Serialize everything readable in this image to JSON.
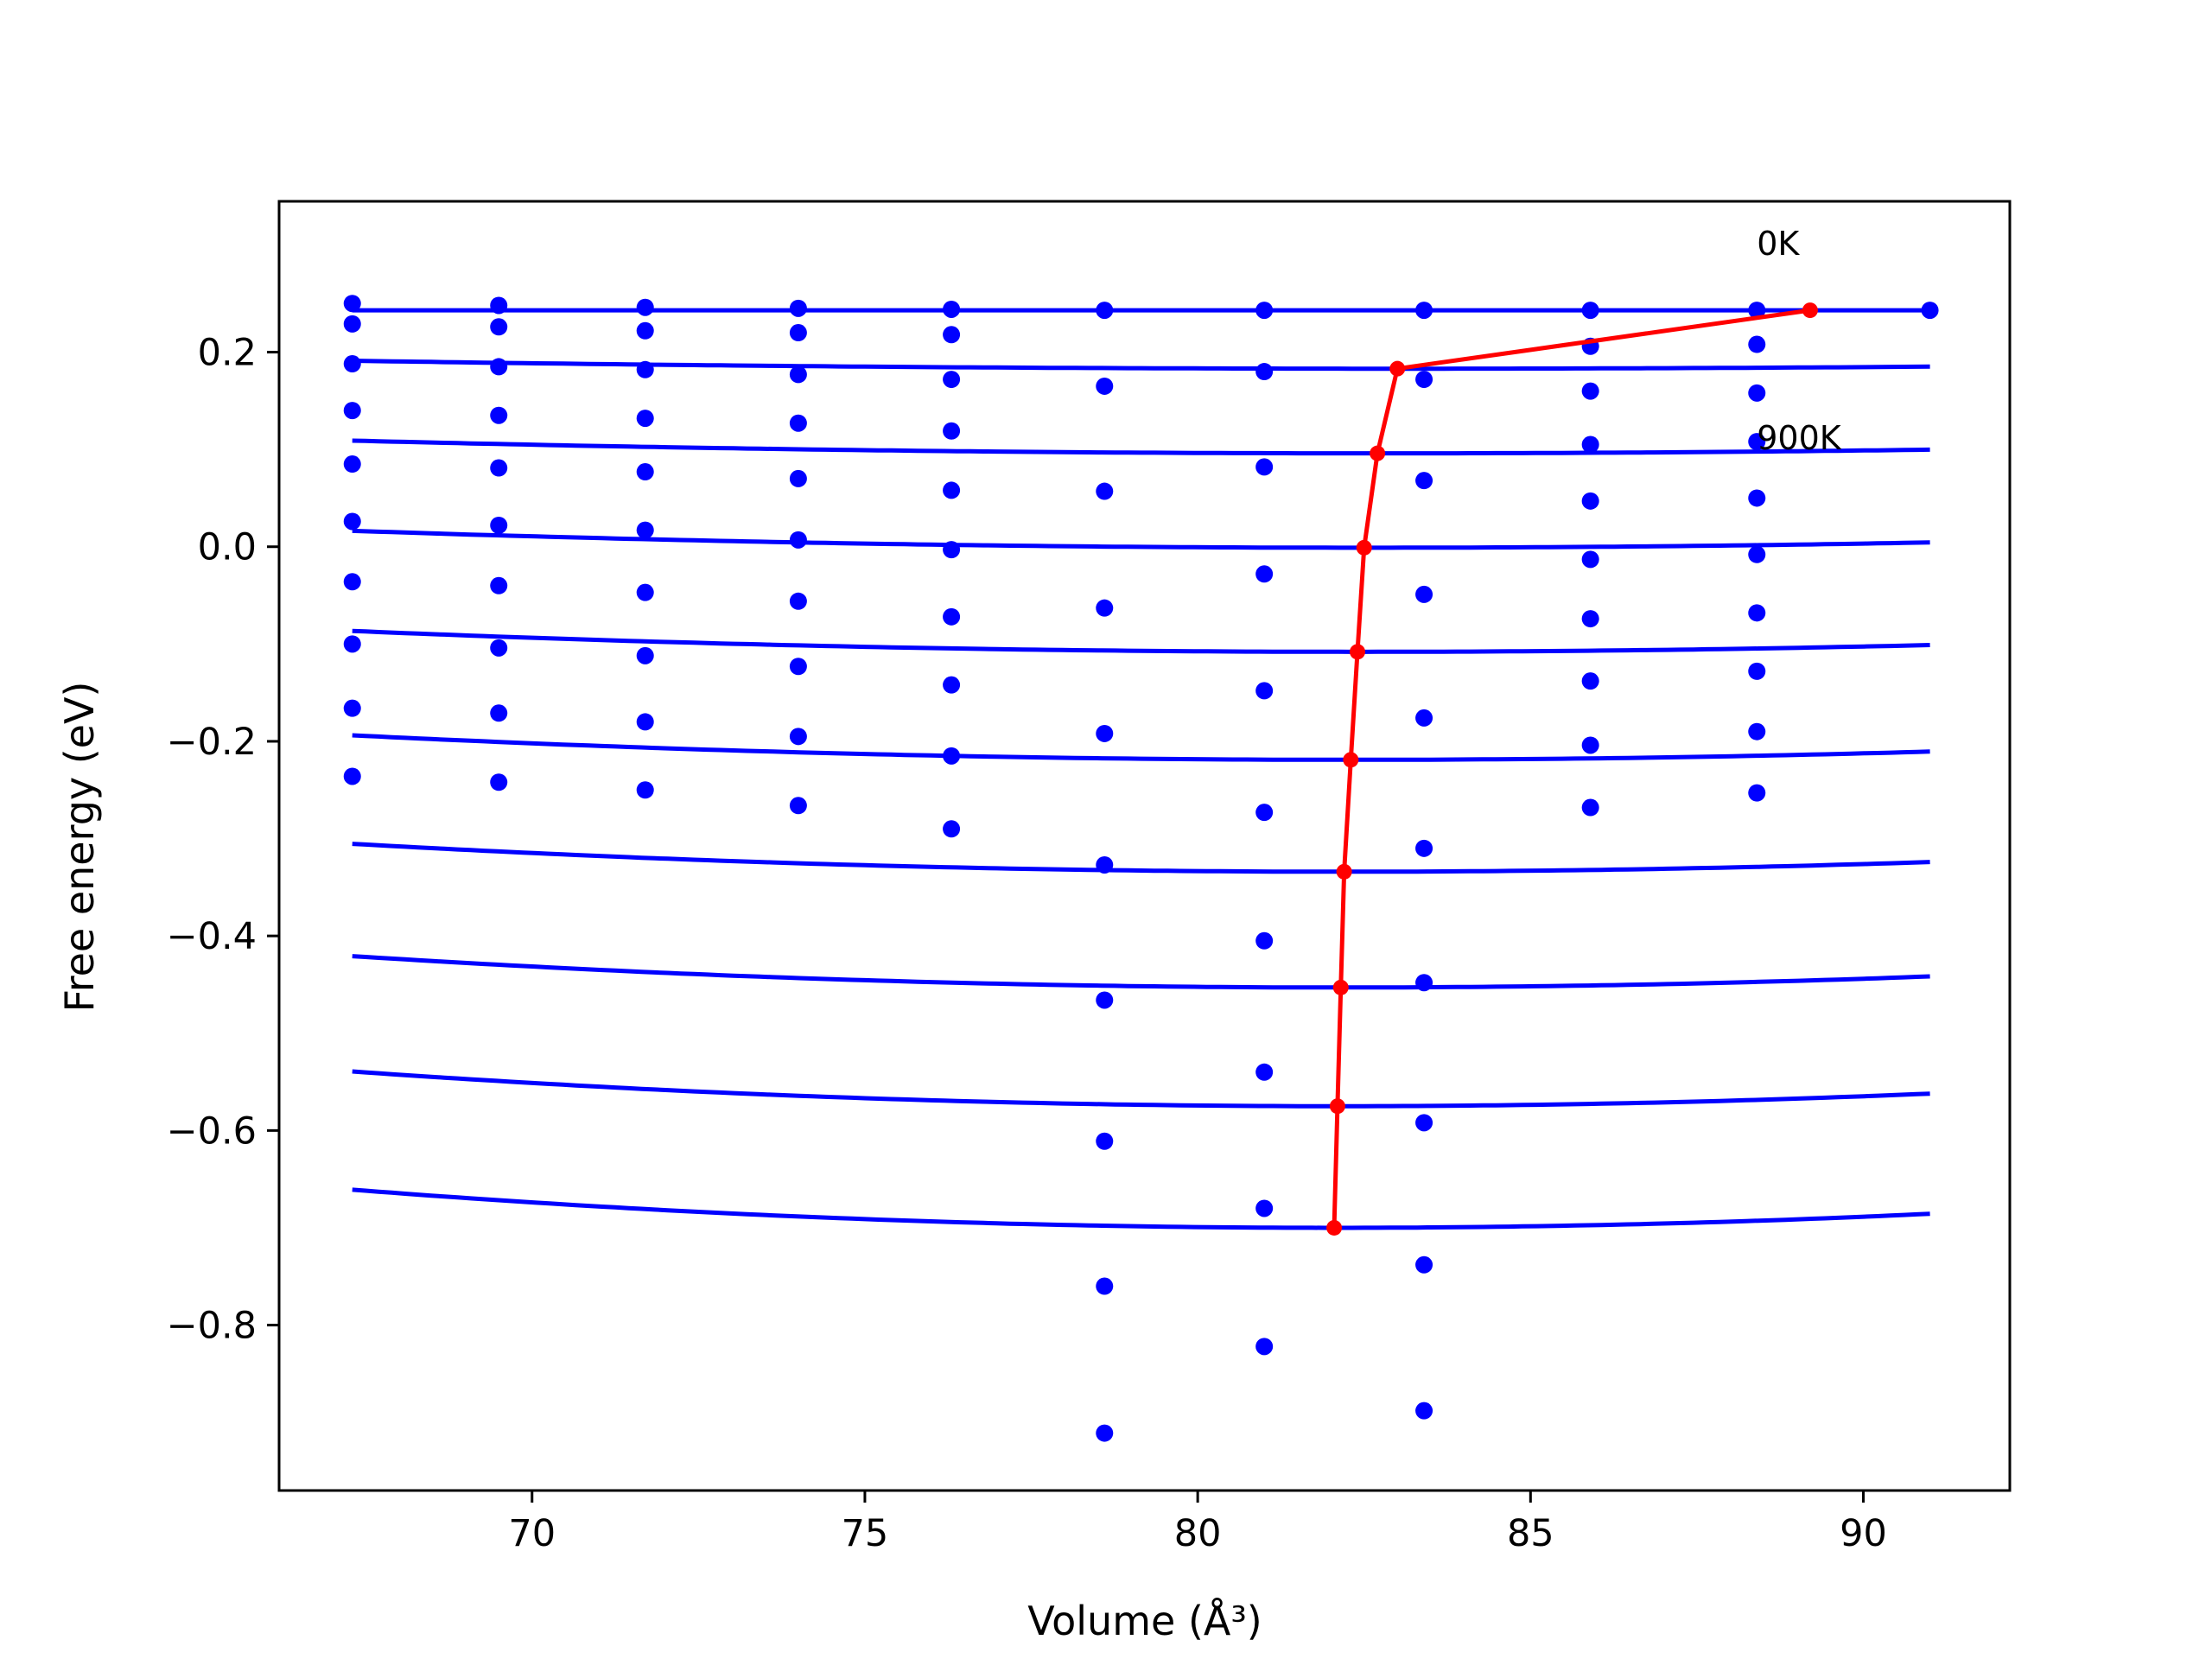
{
  "chart_data": {
    "type": "line",
    "xlabel": "Volume (Å³)",
    "ylabel": "Free energy (eV)",
    "xlim": [
      66.2,
      92.2
    ],
    "ylim": [
      -0.97,
      0.355
    ],
    "xticks": [
      70,
      75,
      80,
      85,
      90
    ],
    "xtick_labels": [
      "70",
      "75",
      "80",
      "85",
      "90"
    ],
    "yticks": [
      0.2,
      0.0,
      -0.2,
      -0.4,
      -0.6,
      -0.8
    ],
    "ytick_labels": [
      "0.2",
      "0.0",
      "−0.2",
      "−0.4",
      "−0.6",
      "−0.8"
    ],
    "grid": false,
    "annotations": [
      {
        "text": "0K",
        "x": 88.4,
        "y": 0.3
      },
      {
        "text": "900K",
        "x": 88.4,
        "y": 0.1
      }
    ],
    "colors": {
      "curves": "#0000ff",
      "points": "#0000ff",
      "minima": "#ff0000",
      "axes": "#000000"
    },
    "points": {
      "volumes": [
        67.3,
        69.5,
        71.7,
        74.0,
        76.3,
        78.6,
        81.0,
        83.4,
        85.9,
        88.4,
        91.0
      ],
      "series": [
        [
          0.25,
          0.248,
          0.246,
          0.245,
          0.244,
          0.243,
          0.243,
          0.243,
          0.243,
          0.243,
          0.243
        ],
        [
          0.229,
          0.226,
          0.222,
          0.22,
          0.218
        ],
        [
          0.188,
          0.185,
          0.182,
          0.177,
          0.172,
          0.165,
          0.18,
          0.172,
          0.206,
          0.208
        ],
        [
          0.14,
          0.135,
          0.132,
          0.127,
          0.119,
          0.16,
          0.158
        ],
        [
          0.085,
          0.081,
          0.077,
          0.07,
          0.058,
          0.057,
          0.082,
          0.068,
          0.105,
          0.108
        ],
        [
          0.026,
          0.022,
          0.017,
          0.007,
          -0.003,
          0.047,
          0.05
        ],
        [
          -0.036,
          -0.04,
          -0.047,
          -0.056,
          -0.072,
          -0.063,
          -0.028,
          -0.049,
          -0.013,
          -0.008
        ],
        [
          -0.1,
          -0.104,
          -0.112,
          -0.123,
          -0.142,
          -0.074,
          -0.068
        ],
        [
          -0.166,
          -0.171,
          -0.18,
          -0.195,
          -0.215,
          -0.192,
          -0.148,
          -0.176,
          -0.138,
          -0.128
        ],
        [
          -0.236,
          -0.242,
          -0.25,
          -0.266,
          -0.29,
          -0.327,
          -0.273,
          -0.31,
          -0.204,
          -0.19
        ],
        [
          -0.466,
          -0.405,
          -0.448,
          -0.268,
          -0.253
        ],
        [
          -0.611,
          -0.54,
          -0.592
        ],
        [
          -0.76,
          -0.68,
          -0.738
        ],
        [
          -0.911,
          -0.822,
          -0.888
        ]
      ],
      "series_x_index": [
        [
          0,
          1,
          2,
          3,
          4,
          5,
          6,
          7,
          8,
          9,
          10
        ],
        [
          0,
          1,
          2,
          3,
          4
        ],
        [
          0,
          1,
          2,
          3,
          4,
          5,
          6,
          7,
          8,
          9
        ],
        [
          0,
          1,
          2,
          3,
          4,
          8,
          9
        ],
        [
          0,
          1,
          2,
          3,
          4,
          5,
          6,
          7,
          8,
          9
        ],
        [
          0,
          1,
          2,
          3,
          4,
          8,
          9
        ],
        [
          0,
          1,
          2,
          3,
          4,
          5,
          6,
          7,
          8,
          9
        ],
        [
          0,
          1,
          2,
          3,
          4,
          8,
          9
        ],
        [
          0,
          1,
          2,
          3,
          4,
          5,
          6,
          7,
          8,
          9
        ],
        [
          0,
          1,
          2,
          3,
          4,
          5,
          6,
          7,
          8,
          9
        ],
        [
          5,
          6,
          7,
          8,
          9
        ],
        [
          5,
          6,
          7
        ],
        [
          5,
          6,
          7
        ],
        [
          5,
          6,
          7
        ]
      ]
    },
    "curves": [
      {
        "v0": 89.2,
        "f0": 0.243,
        "k": 0.0
      },
      {
        "v0": 83.0,
        "f0": 0.183,
        "k": 3.3e-05
      },
      {
        "v0": 82.7,
        "f0": 0.096,
        "k": 5.5e-05
      },
      {
        "v0": 82.5,
        "f0": -0.001,
        "k": 7.5e-05
      },
      {
        "v0": 82.4,
        "f0": -0.108,
        "k": 9.4e-05
      },
      {
        "v0": 82.3,
        "f0": -0.219,
        "k": 0.000112
      },
      {
        "v0": 82.2,
        "f0": -0.334,
        "k": 0.000129
      },
      {
        "v0": 82.15,
        "f0": -0.453,
        "k": 0.000146
      },
      {
        "v0": 82.1,
        "f0": -0.575,
        "k": 0.000163
      },
      {
        "v0": 82.05,
        "f0": -0.7,
        "k": 0.00018
      }
    ],
    "curve_x_range": [
      67.3,
      91.0
    ],
    "curve_end": {
      "x": 91.0,
      "y": 0.243
    },
    "minima": {
      "x": [
        89.2,
        83.0,
        82.7,
        82.5,
        82.4,
        82.3,
        82.2,
        82.15,
        82.1,
        82.05
      ],
      "y": [
        0.243,
        0.183,
        0.096,
        -0.001,
        -0.108,
        -0.219,
        -0.334,
        -0.453,
        -0.575,
        -0.7
      ]
    }
  }
}
